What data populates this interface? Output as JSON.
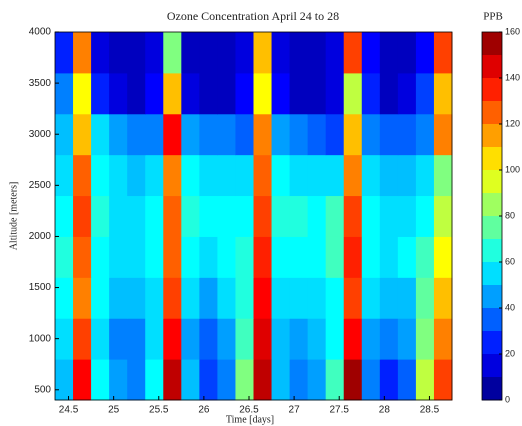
{
  "chart_data": {
    "type": "heatmap",
    "title": "Ozone Concentration April 24 to 28",
    "x_label": "Time [days]",
    "y_label": "Altitude [meters]",
    "colorbar_label": "PPB",
    "colormap": "jet",
    "x": [
      24.45,
      24.65,
      24.85,
      25.05,
      25.25,
      25.45,
      25.65,
      25.85,
      26.05,
      26.25,
      26.45,
      26.65,
      26.85,
      27.05,
      27.25,
      27.45,
      27.65,
      27.85,
      28.05,
      28.25,
      28.45,
      28.65
    ],
    "y": [
      600,
      1000,
      1400,
      1800,
      2200,
      2600,
      3000,
      3400,
      3800
    ],
    "z": [
      [
        50,
        140,
        60,
        45,
        40,
        60,
        150,
        50,
        30,
        40,
        80,
        150,
        50,
        40,
        45,
        70,
        155,
        40,
        25,
        35,
        90,
        130
      ],
      [
        55,
        130,
        55,
        40,
        40,
        55,
        140,
        45,
        35,
        45,
        70,
        145,
        50,
        45,
        50,
        60,
        140,
        45,
        40,
        45,
        80,
        120
      ],
      [
        60,
        120,
        60,
        50,
        50,
        55,
        130,
        55,
        45,
        55,
        65,
        140,
        55,
        55,
        55,
        60,
        130,
        55,
        50,
        50,
        75,
        110
      ],
      [
        65,
        125,
        60,
        55,
        55,
        60,
        125,
        60,
        55,
        60,
        65,
        135,
        60,
        60,
        60,
        70,
        135,
        60,
        55,
        60,
        70,
        100
      ],
      [
        60,
        130,
        65,
        55,
        55,
        60,
        125,
        65,
        60,
        60,
        60,
        130,
        65,
        65,
        60,
        70,
        130,
        60,
        55,
        55,
        60,
        90
      ],
      [
        55,
        125,
        60,
        55,
        50,
        55,
        120,
        60,
        55,
        55,
        55,
        125,
        60,
        55,
        55,
        55,
        120,
        55,
        50,
        50,
        55,
        80
      ],
      [
        50,
        110,
        55,
        45,
        40,
        40,
        140,
        45,
        40,
        40,
        35,
        120,
        45,
        40,
        35,
        30,
        110,
        40,
        35,
        35,
        40,
        120
      ],
      [
        40,
        100,
        25,
        15,
        10,
        20,
        110,
        15,
        10,
        10,
        20,
        100,
        20,
        10,
        10,
        15,
        90,
        25,
        10,
        15,
        30,
        110
      ],
      [
        25,
        120,
        15,
        10,
        10,
        15,
        80,
        10,
        10,
        10,
        15,
        110,
        15,
        10,
        10,
        15,
        130,
        20,
        10,
        10,
        20,
        130
      ]
    ],
    "xlim": [
      24.35,
      28.75
    ],
    "ylim": [
      400,
      4000
    ],
    "xticks": [
      24.5,
      25,
      25.5,
      26,
      26.5,
      27,
      27.5,
      28,
      28.5
    ],
    "yticks": [
      500,
      1000,
      1500,
      2000,
      2500,
      3000,
      3500,
      4000
    ],
    "clim": [
      0,
      160
    ],
    "cticks": [
      0,
      20,
      40,
      60,
      80,
      100,
      120,
      140,
      160
    ]
  }
}
